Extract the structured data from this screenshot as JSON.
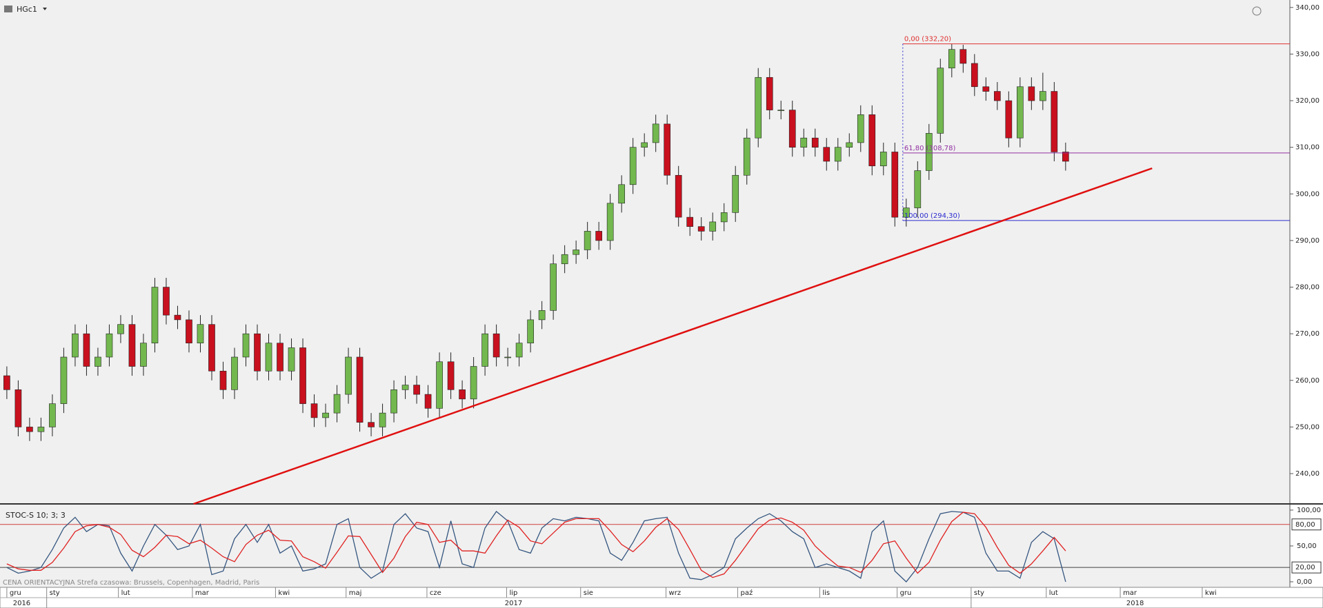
{
  "chart_data": [
    {
      "type": "candlestick",
      "title": "HGc1",
      "ohlc": [
        [
          261,
          263,
          256,
          258
        ],
        [
          258,
          260,
          248,
          250
        ],
        [
          250,
          252,
          247,
          249
        ],
        [
          249,
          252,
          247,
          250
        ],
        [
          250,
          257,
          248,
          255
        ],
        [
          255,
          267,
          253,
          265
        ],
        [
          265,
          272,
          263,
          270
        ],
        [
          270,
          272,
          261,
          263
        ],
        [
          263,
          267,
          261,
          265
        ],
        [
          265,
          272,
          263,
          270
        ],
        [
          270,
          274,
          268,
          272
        ],
        [
          272,
          274,
          261,
          263
        ],
        [
          263,
          270,
          261,
          268
        ],
        [
          268,
          282,
          266,
          280
        ],
        [
          280,
          282,
          272,
          274
        ],
        [
          274,
          276,
          271,
          273
        ],
        [
          273,
          275,
          266,
          268
        ],
        [
          268,
          274,
          266,
          272
        ],
        [
          272,
          274,
          260,
          262
        ],
        [
          262,
          264,
          256,
          258
        ],
        [
          258,
          267,
          256,
          265
        ],
        [
          265,
          272,
          263,
          270
        ],
        [
          270,
          272,
          260,
          262
        ],
        [
          262,
          270,
          260,
          268
        ],
        [
          268,
          270,
          260,
          262
        ],
        [
          262,
          269,
          260,
          267
        ],
        [
          267,
          269,
          253,
          255
        ],
        [
          255,
          257,
          250,
          252
        ],
        [
          252,
          255,
          250,
          253
        ],
        [
          253,
          259,
          251,
          257
        ],
        [
          257,
          267,
          255,
          265
        ],
        [
          265,
          267,
          249,
          251
        ],
        [
          251,
          253,
          248,
          250
        ],
        [
          250,
          255,
          248,
          253
        ],
        [
          253,
          260,
          251,
          258
        ],
        [
          258,
          261,
          256,
          259
        ],
        [
          259,
          261,
          255,
          257
        ],
        [
          257,
          259,
          252,
          254
        ],
        [
          254,
          266,
          252,
          264
        ],
        [
          264,
          266,
          256,
          258
        ],
        [
          258,
          260,
          254,
          256
        ],
        [
          256,
          265,
          254,
          263
        ],
        [
          263,
          272,
          261,
          270
        ],
        [
          270,
          272,
          263,
          265
        ],
        [
          265,
          267,
          263,
          265
        ],
        [
          265,
          270,
          263,
          268
        ],
        [
          268,
          275,
          266,
          273
        ],
        [
          273,
          277,
          271,
          275
        ],
        [
          275,
          287,
          273,
          285
        ],
        [
          285,
          289,
          283,
          287
        ],
        [
          287,
          290,
          285,
          288
        ],
        [
          288,
          294,
          286,
          292
        ],
        [
          292,
          294,
          288,
          290
        ],
        [
          290,
          300,
          288,
          298
        ],
        [
          298,
          304,
          296,
          302
        ],
        [
          302,
          312,
          300,
          310
        ],
        [
          310,
          313,
          308,
          311
        ],
        [
          311,
          317,
          309,
          315
        ],
        [
          315,
          317,
          302,
          304
        ],
        [
          304,
          306,
          293,
          295
        ],
        [
          295,
          297,
          291,
          293
        ],
        [
          293,
          295,
          290,
          292
        ],
        [
          292,
          296,
          290,
          294
        ],
        [
          294,
          298,
          292,
          296
        ],
        [
          296,
          306,
          294,
          304
        ],
        [
          304,
          314,
          302,
          312
        ],
        [
          312,
          327,
          310,
          325
        ],
        [
          325,
          327,
          316,
          318
        ],
        [
          318,
          320,
          316,
          318
        ],
        [
          318,
          320,
          308,
          310
        ],
        [
          310,
          314,
          308,
          312
        ],
        [
          312,
          314,
          308,
          310
        ],
        [
          310,
          312,
          305,
          307
        ],
        [
          307,
          312,
          305,
          310
        ],
        [
          310,
          313,
          308,
          311
        ],
        [
          311,
          319,
          309,
          317
        ],
        [
          317,
          319,
          304,
          306
        ],
        [
          306,
          311,
          304,
          309
        ],
        [
          309,
          311,
          293,
          295
        ],
        [
          295,
          299,
          293,
          297
        ],
        [
          297,
          307,
          295,
          305
        ],
        [
          305,
          315,
          303,
          313
        ],
        [
          313,
          329,
          311,
          327
        ],
        [
          327,
          332.2,
          325,
          331
        ],
        [
          331,
          332,
          326,
          328
        ],
        [
          328,
          330,
          321,
          323
        ],
        [
          323,
          325,
          320,
          322
        ],
        [
          322,
          324,
          318,
          320
        ],
        [
          320,
          322,
          310,
          312
        ],
        [
          312,
          325,
          310,
          323
        ],
        [
          323,
          325,
          318,
          320
        ],
        [
          320,
          326,
          318,
          322
        ],
        [
          322,
          324,
          307,
          309
        ],
        [
          309,
          311,
          305,
          307
        ]
      ],
      "up_color": "#72b84e",
      "down_color": "#c8101e",
      "xlim": [
        -0.6,
        112.7
      ],
      "ylim": [
        233.5,
        341.6
      ],
      "yticks": [
        {
          "value": 240,
          "label": "240,00"
        },
        {
          "value": 250,
          "label": "250,00"
        },
        {
          "value": 260,
          "label": "260,00"
        },
        {
          "value": 270,
          "label": "270,00"
        },
        {
          "value": 280,
          "label": "280,00"
        },
        {
          "value": 290,
          "label": "290,00"
        },
        {
          "value": 300,
          "label": "300,00"
        },
        {
          "value": 310,
          "label": "310,00"
        },
        {
          "value": 320,
          "label": "320,00"
        },
        {
          "value": 330,
          "label": "330,00"
        },
        {
          "value": 340,
          "label": "340,00"
        }
      ],
      "xticks": [
        {
          "value": 0,
          "label": "gru"
        },
        {
          "value": 3.5,
          "label": "sty"
        },
        {
          "value": 9.8,
          "label": "lut"
        },
        {
          "value": 16.3,
          "label": "mar"
        },
        {
          "value": 23.6,
          "label": "kwi"
        },
        {
          "value": 29.8,
          "label": "maj"
        },
        {
          "value": 36.9,
          "label": "cze"
        },
        {
          "value": 43.9,
          "label": "lip"
        },
        {
          "value": 50.4,
          "label": "sie"
        },
        {
          "value": 57.9,
          "label": "wrz"
        },
        {
          "value": 64.2,
          "label": "paź"
        },
        {
          "value": 71.4,
          "label": "lis"
        },
        {
          "value": 78.2,
          "label": "gru"
        },
        {
          "value": 84.7,
          "label": "sty"
        },
        {
          "value": 91.3,
          "label": "lut"
        },
        {
          "value": 97.8,
          "label": "mar"
        },
        {
          "value": 105,
          "label": "kwi"
        }
      ],
      "year_ticks": [
        {
          "value": 0.7,
          "label": "2016"
        },
        {
          "value": 43.9,
          "label": "2017"
        },
        {
          "value": 98.5,
          "label": "2018"
        }
      ],
      "year_dividers": [
        3.5,
        84.7
      ],
      "fib_start": 78.7,
      "fib_levels": [
        {
          "value": 332.2,
          "label": "0,00 (332,20)",
          "color": "#e03030"
        },
        {
          "value": 308.78,
          "label": "61,80 (308,78)",
          "color": "#9030a0"
        },
        {
          "value": 294.3,
          "label": "100,00 (294,30)",
          "color": "#2a2ad0"
        }
      ],
      "trendline": {
        "x": [
          16.4,
          100.6
        ],
        "y": [
          233.5,
          305.5
        ],
        "color": "#e01010"
      }
    },
    {
      "type": "line",
      "title": "STOC-S 10; 3; 3",
      "note": "CENA ORIENTACYJNA   Strefa czasowa: Brussels, Copenhagen, Madrid, Paris",
      "xlim": [
        -0.6,
        112.7
      ],
      "ylim": [
        -5.8,
        106.7
      ],
      "yticks": [
        {
          "value": 100,
          "label": "100,00"
        },
        {
          "value": 50,
          "label": "50,00"
        },
        {
          "value": 0,
          "label": "0,00"
        }
      ],
      "levels": [
        {
          "value": 80,
          "label": "80,00",
          "color": "#d04040"
        },
        {
          "value": 20,
          "label": "20,00",
          "color": "#404040"
        }
      ],
      "series": [
        {
          "color": "#34557f",
          "values": [
            20,
            12,
            15,
            20,
            45,
            75,
            90,
            70,
            80,
            78,
            40,
            15,
            50,
            80,
            65,
            45,
            50,
            80,
            10,
            15,
            60,
            80,
            55,
            80,
            40,
            50,
            15,
            18,
            25,
            80,
            88,
            20,
            5,
            15,
            80,
            95,
            75,
            70,
            20,
            85,
            25,
            20,
            75,
            98,
            85,
            45,
            40,
            75,
            88,
            85,
            90,
            88,
            85,
            40,
            30,
            55,
            85,
            88,
            90,
            40,
            5,
            3,
            10,
            20,
            60,
            75,
            88,
            95,
            85,
            70,
            60,
            20,
            25,
            20,
            15,
            5,
            70,
            85,
            15,
            0,
            20,
            60,
            95,
            98,
            97,
            90,
            40,
            15,
            15,
            5,
            55,
            70,
            60,
            0
          ]
        },
        {
          "color": "#e02020",
          "values": [
            25,
            18,
            16,
            16,
            27,
            47,
            70,
            78,
            80,
            76,
            66,
            44,
            35,
            48,
            65,
            63,
            53,
            58,
            47,
            35,
            28,
            52,
            65,
            72,
            58,
            57,
            35,
            28,
            19,
            41,
            64,
            63,
            38,
            13,
            33,
            63,
            83,
            80,
            55,
            58,
            43,
            43,
            40,
            64,
            86,
            76,
            57,
            53,
            68,
            83,
            88,
            88,
            88,
            71,
            52,
            42,
            57,
            76,
            88,
            73,
            45,
            16,
            6,
            11,
            30,
            52,
            74,
            86,
            89,
            83,
            72,
            50,
            35,
            22,
            20,
            13,
            30,
            53,
            57,
            33,
            12,
            27,
            58,
            84,
            97,
            95,
            76,
            48,
            23,
            12,
            25,
            43,
            62,
            43
          ]
        }
      ]
    }
  ]
}
